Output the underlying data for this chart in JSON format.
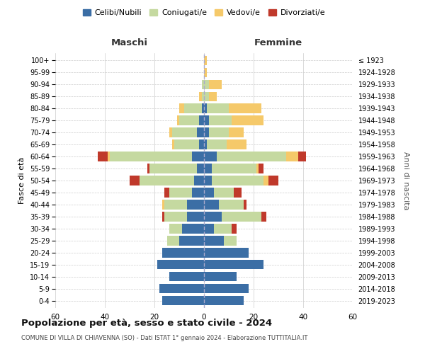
{
  "age_groups": [
    "0-4",
    "5-9",
    "10-14",
    "15-19",
    "20-24",
    "25-29",
    "30-34",
    "35-39",
    "40-44",
    "45-49",
    "50-54",
    "55-59",
    "60-64",
    "65-69",
    "70-74",
    "75-79",
    "80-84",
    "85-89",
    "90-94",
    "95-99",
    "100+"
  ],
  "birth_years": [
    "2019-2023",
    "2014-2018",
    "2009-2013",
    "2004-2008",
    "1999-2003",
    "1994-1998",
    "1989-1993",
    "1984-1988",
    "1979-1983",
    "1974-1978",
    "1969-1973",
    "1964-1968",
    "1959-1963",
    "1954-1958",
    "1949-1953",
    "1944-1948",
    "1939-1943",
    "1934-1938",
    "1929-1933",
    "1924-1928",
    "≤ 1923"
  ],
  "colors": {
    "celibe": "#3B6EA5",
    "coniugato": "#C5D9A0",
    "vedovo": "#F5C96A",
    "divorziato": "#C0392B"
  },
  "maschi": {
    "celibe": [
      17,
      18,
      14,
      19,
      17,
      10,
      9,
      7,
      7,
      5,
      4,
      3,
      5,
      2,
      3,
      2,
      1,
      0,
      0,
      0,
      0
    ],
    "coniugato": [
      0,
      0,
      0,
      0,
      0,
      5,
      5,
      9,
      9,
      9,
      22,
      19,
      33,
      10,
      10,
      8,
      7,
      1,
      1,
      0,
      0
    ],
    "vedovo": [
      0,
      0,
      0,
      0,
      0,
      0,
      0,
      0,
      1,
      0,
      0,
      0,
      1,
      1,
      1,
      1,
      2,
      1,
      0,
      0,
      0
    ],
    "divorziato": [
      0,
      0,
      0,
      0,
      0,
      0,
      0,
      1,
      0,
      2,
      4,
      1,
      4,
      0,
      0,
      0,
      0,
      0,
      0,
      0,
      0
    ]
  },
  "femmine": {
    "nubile": [
      16,
      18,
      13,
      24,
      18,
      8,
      4,
      7,
      6,
      4,
      3,
      3,
      5,
      1,
      2,
      2,
      1,
      0,
      0,
      0,
      0
    ],
    "coniugata": [
      0,
      0,
      0,
      0,
      0,
      5,
      7,
      16,
      10,
      8,
      21,
      18,
      28,
      8,
      8,
      9,
      9,
      2,
      2,
      0,
      0
    ],
    "vedova": [
      0,
      0,
      0,
      0,
      0,
      0,
      0,
      0,
      0,
      0,
      2,
      1,
      5,
      8,
      6,
      13,
      13,
      3,
      5,
      1,
      1
    ],
    "divorziata": [
      0,
      0,
      0,
      0,
      0,
      0,
      2,
      2,
      1,
      3,
      4,
      2,
      3,
      0,
      0,
      0,
      0,
      0,
      0,
      0,
      0
    ]
  },
  "xlim": 60,
  "title": "Popolazione per età, sesso e stato civile - 2024",
  "subtitle": "COMUNE DI VILLA DI CHIAVENNA (SO) - Dati ISTAT 1° gennaio 2024 - Elaborazione TUTTITALIA.IT",
  "xlabel_left": "Maschi",
  "xlabel_right": "Femmine",
  "ylabel_left": "Fasce di età",
  "ylabel_right": "Anni di nascita",
  "legend_labels": [
    "Celibi/Nubili",
    "Coniugati/e",
    "Vedovi/e",
    "Divorziati/e"
  ]
}
